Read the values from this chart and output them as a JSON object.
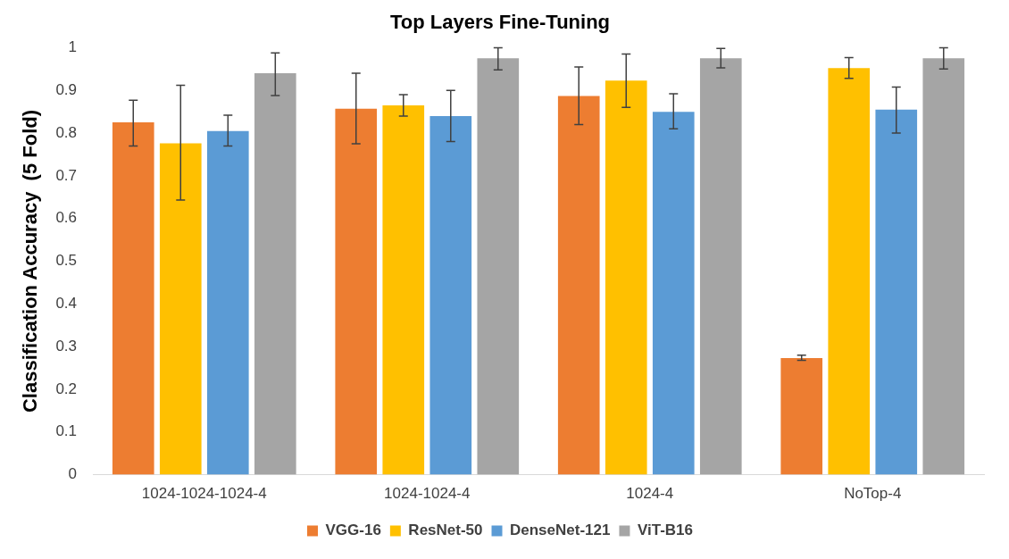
{
  "chart_data": {
    "type": "bar",
    "title": "Top Layers Fine-Tuning",
    "ylabel": "Classification Accuracy  (5 Fold)",
    "categories": [
      "1024-1024-1024-4",
      "1024-1024-4",
      "1024-4",
      "NoTop-4"
    ],
    "series": [
      {
        "name": "VGG-16",
        "color": "#ed7d31",
        "values": [
          0.825,
          0.857,
          0.887,
          0.273
        ],
        "errors": [
          [
            0.77,
            0.877
          ],
          [
            0.775,
            0.94
          ],
          [
            0.82,
            0.955
          ],
          [
            0.268,
            0.28
          ]
        ]
      },
      {
        "name": "ResNet-50",
        "color": "#ffc000",
        "values": [
          0.776,
          0.865,
          0.923,
          0.952
        ],
        "errors": [
          [
            0.643,
            0.912
          ],
          [
            0.84,
            0.89
          ],
          [
            0.86,
            0.985
          ],
          [
            0.928,
            0.977
          ]
        ]
      },
      {
        "name": "DenseNet-121",
        "color": "#5b9bd5",
        "values": [
          0.805,
          0.84,
          0.85,
          0.855
        ],
        "errors": [
          [
            0.77,
            0.842
          ],
          [
            0.78,
            0.9
          ],
          [
            0.81,
            0.892
          ],
          [
            0.8,
            0.908
          ]
        ]
      },
      {
        "name": "ViT-B16",
        "color": "#a5a5a5",
        "values": [
          0.94,
          0.975,
          0.975,
          0.975
        ],
        "errors": [
          [
            0.888,
            0.988
          ],
          [
            0.948,
            1.0
          ],
          [
            0.953,
            0.998
          ],
          [
            0.95,
            1.0
          ]
        ]
      }
    ],
    "ylim": [
      0,
      1
    ],
    "yticks": [
      0,
      0.1,
      0.2,
      0.3,
      0.4,
      0.5,
      0.6,
      0.7,
      0.8,
      0.9,
      1
    ],
    "grid": false,
    "legend": "bottom"
  }
}
